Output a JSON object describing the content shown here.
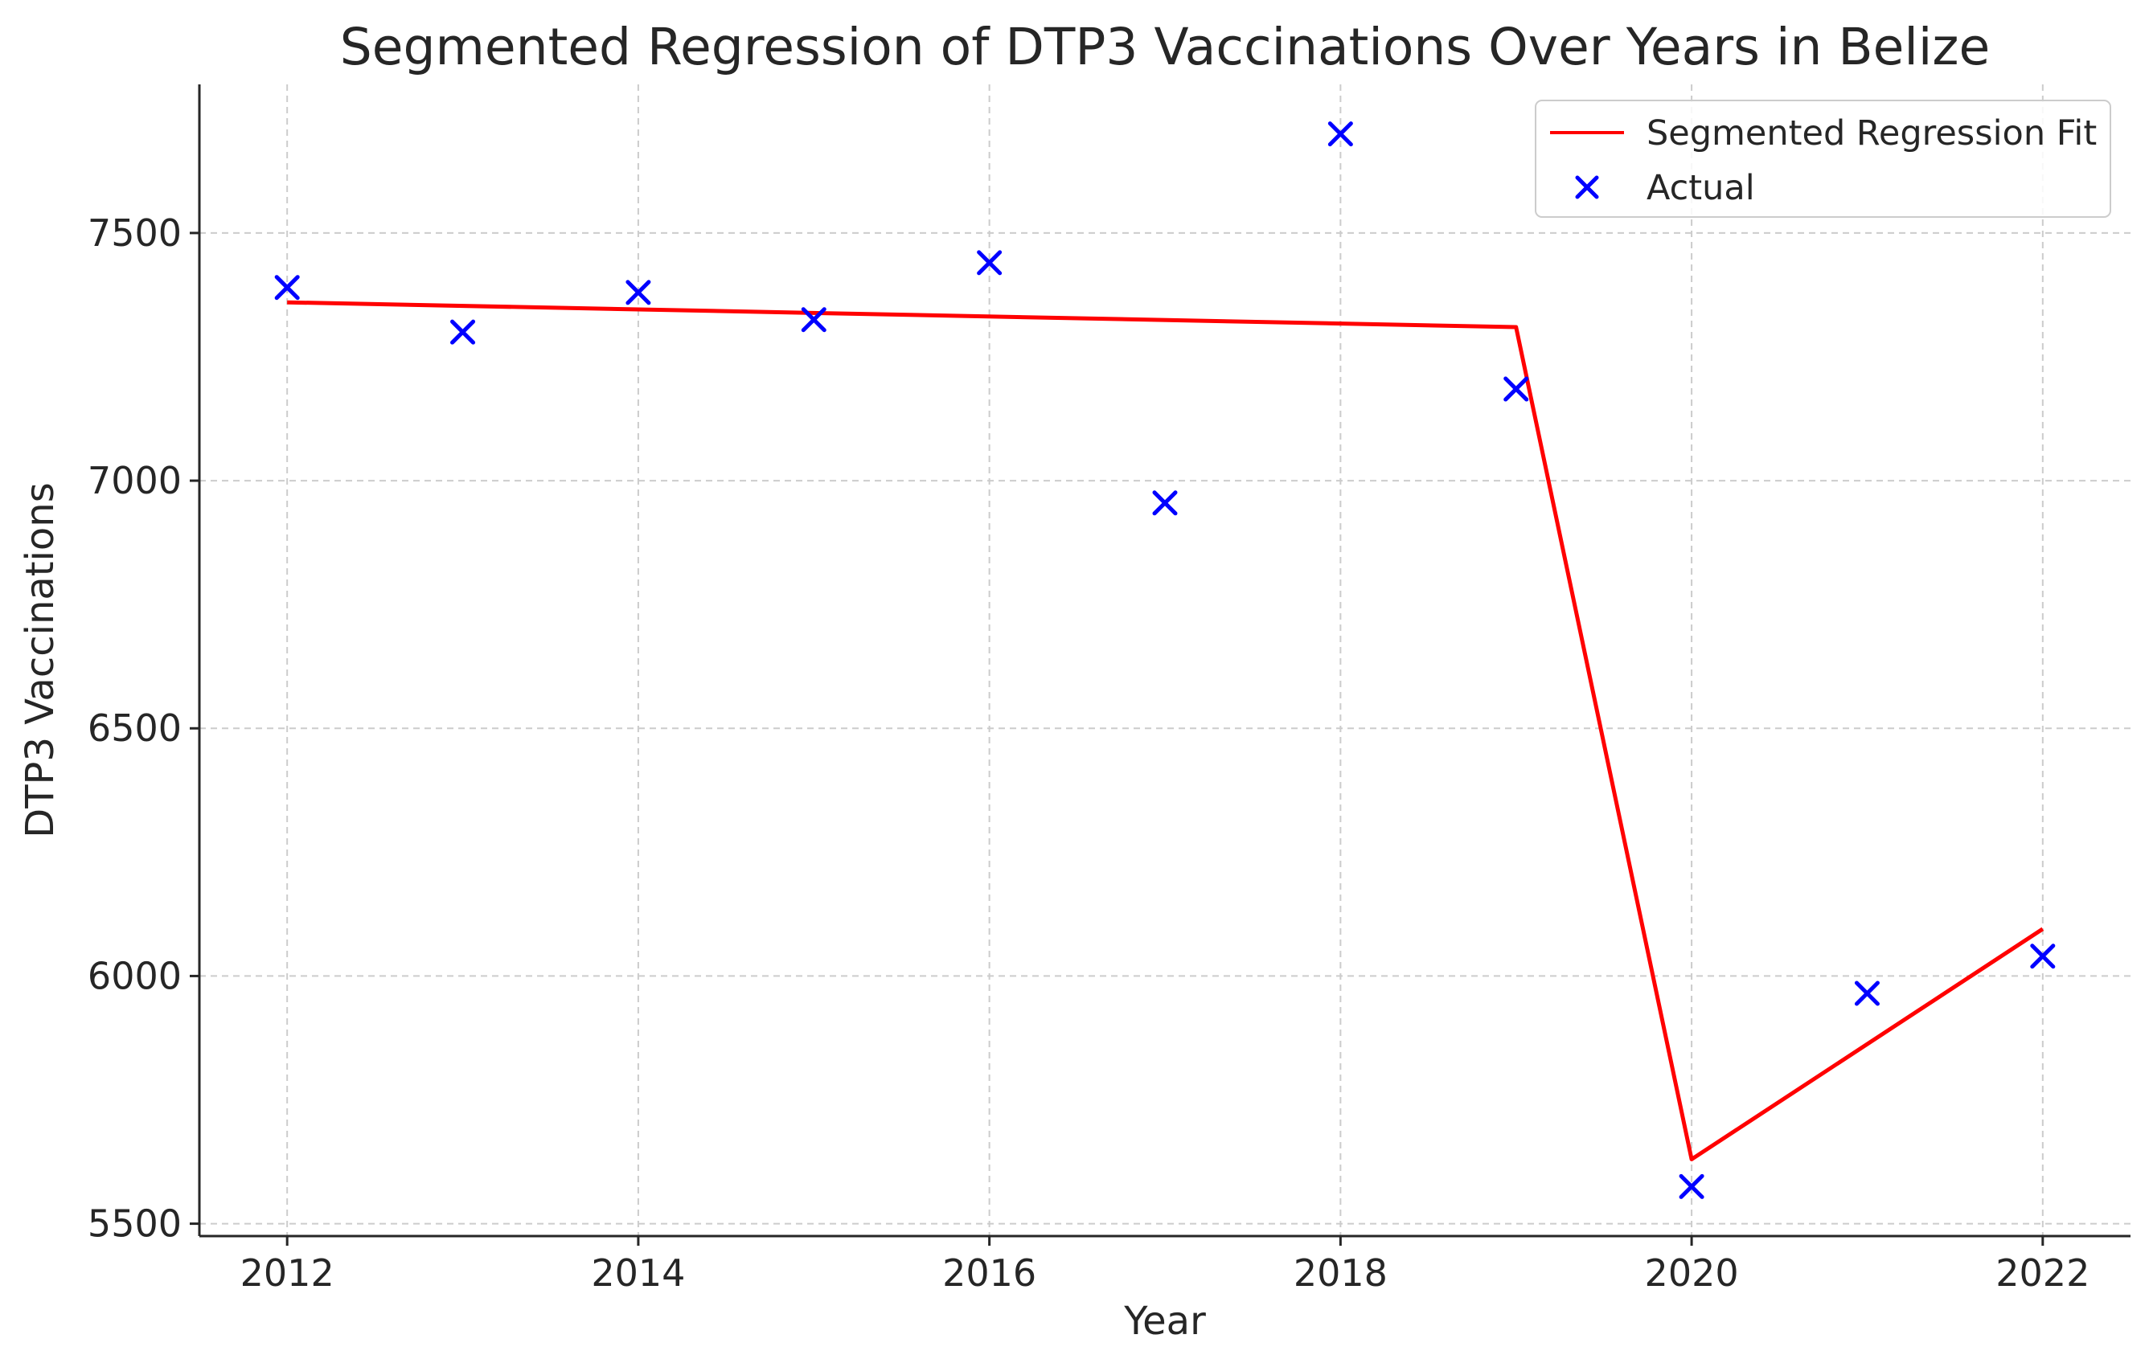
{
  "chart_data": {
    "type": "line",
    "title": "Segmented Regression of DTP3 Vaccinations Over Years in Belize",
    "xlabel": "Year",
    "ylabel": "DTP3 Vaccinations",
    "xlim": [
      2011.5,
      2022.5
    ],
    "ylim": [
      5475,
      7800
    ],
    "xticks": [
      2012,
      2014,
      2016,
      2018,
      2020,
      2022
    ],
    "yticks": [
      5500,
      6000,
      6500,
      7000,
      7500
    ],
    "grid": true,
    "legend_position": "top-right",
    "series": [
      {
        "name": "Segmented Regression Fit",
        "kind": "line",
        "color": "#ff0000",
        "x": [
          2012,
          2019,
          2020,
          2022
        ],
        "y": [
          7360,
          7310,
          5630,
          6095
        ]
      },
      {
        "name": "Actual",
        "kind": "scatter",
        "marker": "x",
        "color": "#0000ff",
        "x": [
          2012,
          2013,
          2014,
          2015,
          2016,
          2017,
          2018,
          2019,
          2020,
          2021,
          2022
        ],
        "y": [
          7390,
          7300,
          7380,
          7325,
          7440,
          6955,
          7700,
          7185,
          5575,
          5965,
          6040
        ]
      }
    ]
  }
}
